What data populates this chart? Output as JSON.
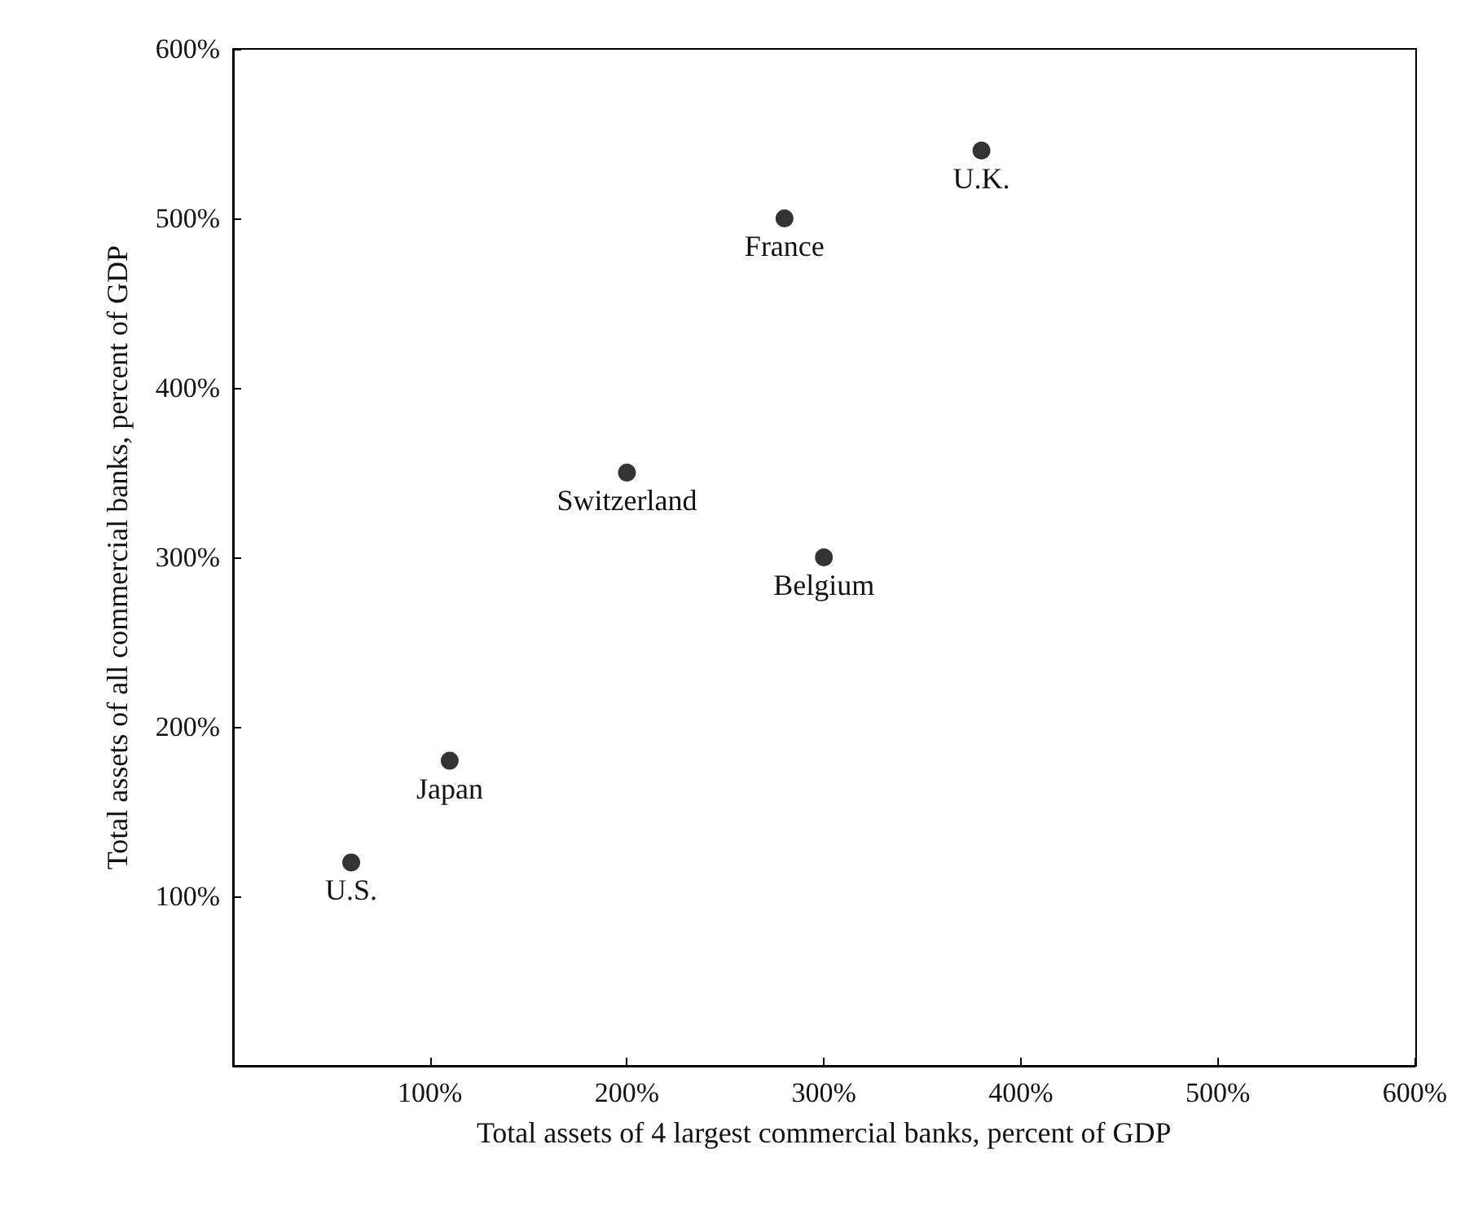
{
  "chart_data": {
    "type": "scatter",
    "xlabel": "Total assets of 4 largest commercial banks, percent of GDP",
    "ylabel": "Total assets of all commercial banks, percent of GDP",
    "x": [
      60,
      110,
      200,
      280,
      300,
      380
    ],
    "series": [
      {
        "color": "#000000",
        "values": [
          120,
          180,
          350,
          500,
          300,
          540
        ]
      }
    ],
    "annotations": [
      {
        "text": "U.S.",
        "x": 60,
        "y": 120
      },
      {
        "text": "Japan",
        "x": 110,
        "y": 180
      },
      {
        "text": "Switzerland",
        "x": 200,
        "y": 350
      },
      {
        "text": "France",
        "x": 280,
        "y": 500
      },
      {
        "text": "Belgium",
        "x": 300,
        "y": 300
      },
      {
        "text": "U.K.",
        "x": 380,
        "y": 540
      }
    ],
    "xlim": [
      0,
      600
    ],
    "xticks": [
      {
        "value": 100,
        "label": "100%"
      },
      {
        "value": 200,
        "label": "200%"
      },
      {
        "value": 300,
        "label": "300%"
      },
      {
        "value": 400,
        "label": "400%"
      },
      {
        "value": 500,
        "label": "500%"
      },
      {
        "value": 600,
        "label": "600%"
      }
    ],
    "ylim": [
      0,
      600
    ],
    "yticks": [
      {
        "value": 100,
        "label": "100%"
      },
      {
        "value": 200,
        "label": "200%"
      },
      {
        "value": 300,
        "label": "300%"
      },
      {
        "value": 400,
        "label": "400%"
      },
      {
        "value": 500,
        "label": "500%"
      },
      {
        "value": 600,
        "label": "600%"
      }
    ],
    "marker": "circle",
    "grid": false
  }
}
